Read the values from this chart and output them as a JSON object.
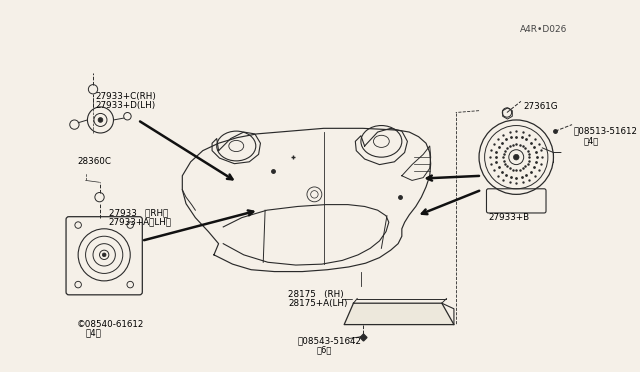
{
  "bg_color": "#f5f0e8",
  "line_color": "#2a2a2a",
  "text_color": "#000000",
  "watermark": "A4R•D026",
  "labels": {
    "tweeter_top1": "27933+C(RH)",
    "tweeter_top2": "27933+D(LH)",
    "tweeter_bot": "28360C",
    "door_top1": "27933   ＜RH＞",
    "door_top2": "27933+A＜LH＞",
    "door_screw_lbl": "©08540-61612",
    "door_screw_qty": "（4）",
    "cover_lbl1": "28175   (RH)",
    "cover_lbl2": "28175+A(LH)",
    "rear_screw1_lbl": "Ⓝ08543-51642",
    "rear_screw1_qty": "（6）",
    "rear_screw2_lbl": "Ⓝ08513-51612",
    "rear_screw2_qty": "（4）",
    "rear_spk_lbl": "27933+B",
    "nut_lbl": "27361G"
  },
  "figsize": [
    6.4,
    3.72
  ],
  "dpi": 100
}
